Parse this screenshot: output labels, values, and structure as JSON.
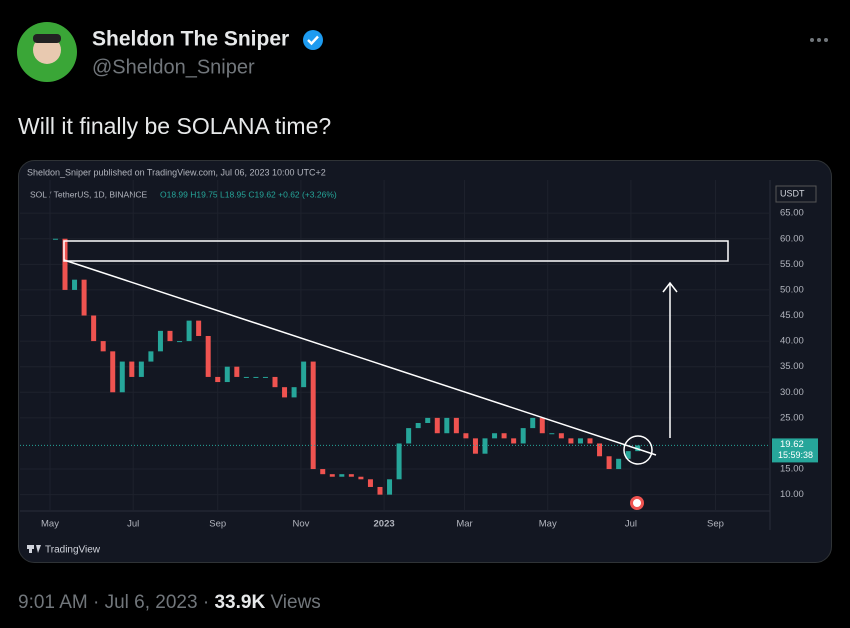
{
  "tweet": {
    "author_name": "Sheldon The Sniper",
    "handle": "@Sheldon_Sniper",
    "text": "Will it finally be SOLANA time?",
    "time": "9:01 AM",
    "separator": "·",
    "date": "Jul 6, 2023",
    "views_count": "33.9K",
    "views_label": "Views"
  },
  "chart_data": {
    "type": "candlestick",
    "published": "Sheldon_Sniper published on TradingView.com, Jul 06, 2023 10:00 UTC+2",
    "symbol": "SOL / TetherUS, 1D, BINANCE",
    "ohlc": "O18.99 H19.75 L18.95 C19.62 +0.62 (+3.26%)",
    "currency": "USDT",
    "last_price": 19.62,
    "countdown": "15:59:38",
    "branding": "TradingView",
    "x": [
      "2022-05-05",
      "2022-05-12",
      "2022-05-19",
      "2022-05-26",
      "2022-06-02",
      "2022-06-09",
      "2022-06-16",
      "2022-06-23",
      "2022-06-30",
      "2022-07-07",
      "2022-07-14",
      "2022-07-21",
      "2022-07-28",
      "2022-08-04",
      "2022-08-11",
      "2022-08-18",
      "2022-08-25",
      "2022-09-01",
      "2022-09-08",
      "2022-09-15",
      "2022-09-22",
      "2022-09-29",
      "2022-10-06",
      "2022-10-13",
      "2022-10-20",
      "2022-10-27",
      "2022-11-03",
      "2022-11-10",
      "2022-11-17",
      "2022-11-24",
      "2022-12-01",
      "2022-12-08",
      "2022-12-15",
      "2022-12-22",
      "2022-12-29",
      "2023-01-05",
      "2023-01-12",
      "2023-01-19",
      "2023-01-26",
      "2023-02-02",
      "2023-02-09",
      "2023-02-16",
      "2023-02-23",
      "2023-03-02",
      "2023-03-09",
      "2023-03-16",
      "2023-03-23",
      "2023-03-30",
      "2023-04-06",
      "2023-04-13",
      "2023-04-20",
      "2023-04-27",
      "2023-05-04",
      "2023-05-11",
      "2023-05-18",
      "2023-05-25",
      "2023-06-01",
      "2023-06-08",
      "2023-06-15",
      "2023-06-22",
      "2023-06-29",
      "2023-07-06"
    ],
    "values": [
      60,
      50,
      52,
      45,
      40,
      38,
      30,
      36,
      33,
      36,
      38,
      42,
      40,
      40,
      44,
      41,
      33,
      32,
      35,
      33,
      33,
      33,
      33,
      31,
      29,
      31,
      36,
      15,
      14,
      13.5,
      14,
      13.5,
      13,
      11.5,
      10,
      13,
      20,
      23,
      24,
      25,
      22,
      25,
      22,
      21,
      18,
      21,
      22,
      21,
      20,
      23,
      25,
      22,
      22,
      21,
      20,
      21,
      20,
      17.5,
      15,
      17,
      18.5,
      19.62
    ],
    "xlim": [
      "2022-04-09",
      "2023-10-11"
    ],
    "xticks": [
      {
        "value": "2022-05-01",
        "label": "May"
      },
      {
        "value": "2022-07-01",
        "label": "Jul"
      },
      {
        "value": "2022-09-01",
        "label": "Sep"
      },
      {
        "value": "2022-11-01",
        "label": "Nov"
      },
      {
        "value": "2023-01-01",
        "label": "2023"
      },
      {
        "value": "2023-03-01",
        "label": "Mar"
      },
      {
        "value": "2023-05-01",
        "label": "May"
      },
      {
        "value": "2023-07-01",
        "label": "Jul"
      },
      {
        "value": "2023-09-01",
        "label": "Sep"
      }
    ],
    "ylim": [
      7,
      70.5
    ],
    "yticks": [
      {
        "value": 65,
        "label": "65.00"
      },
      {
        "value": 60,
        "label": "60.00"
      },
      {
        "value": 55,
        "label": "55.00"
      },
      {
        "value": 50,
        "label": "50.00"
      },
      {
        "value": 45,
        "label": "45.00"
      },
      {
        "value": 40,
        "label": "40.00"
      },
      {
        "value": 35,
        "label": "35.00"
      },
      {
        "value": 30,
        "label": "30.00"
      },
      {
        "value": 25,
        "label": "25.00"
      },
      {
        "value": 15,
        "label": "15.00"
      },
      {
        "value": 10,
        "label": "10.00"
      }
    ],
    "up_color": "#26a69a",
    "down_color": "#ef5350"
  }
}
